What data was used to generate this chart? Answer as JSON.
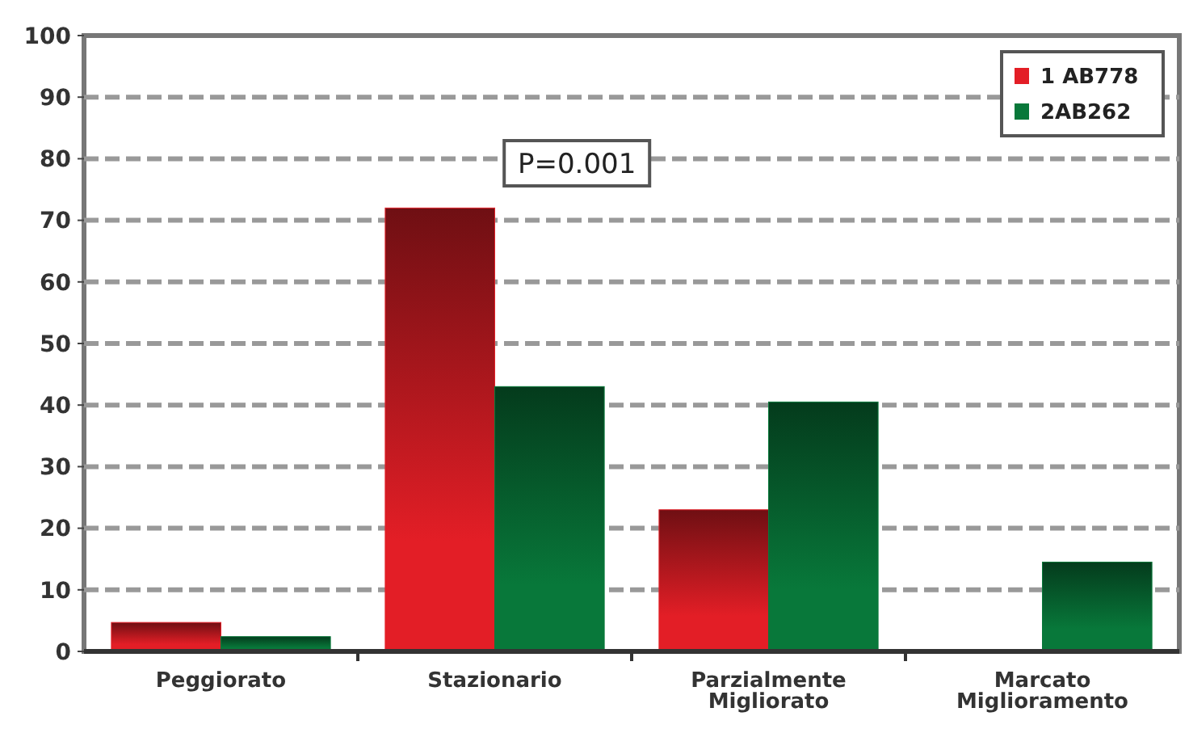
{
  "chart_data": {
    "type": "bar",
    "categories": [
      "Peggiorato",
      "Stazionario",
      "Parzialmente Migliorato",
      "Marcato Miglioramento"
    ],
    "series": [
      {
        "name": "1 AB778",
        "color": "#e31e26",
        "values": [
          4.7,
          72,
          23,
          0
        ]
      },
      {
        "name": "2AB262",
        "color": "#08783a",
        "values": [
          2.4,
          43,
          40.5,
          14.5
        ]
      }
    ],
    "ylim": [
      0,
      100
    ],
    "yticks": [
      0,
      10,
      20,
      30,
      40,
      50,
      60,
      70,
      80,
      90,
      100
    ],
    "grid": "y",
    "legend": "top right",
    "annotations": [
      "P=0.001"
    ]
  }
}
